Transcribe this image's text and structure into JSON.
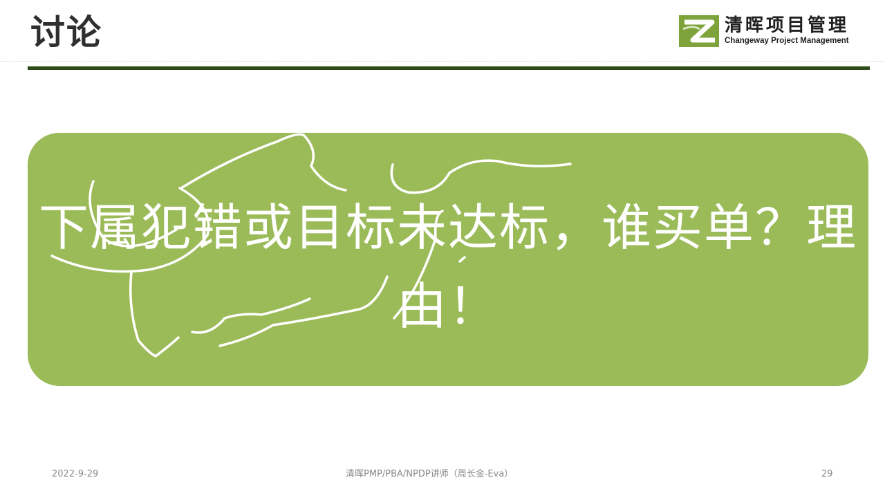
{
  "slide": {
    "title": "讨论",
    "logo": {
      "name_cn": "清晖项目管理",
      "name_en": "Changeway Project Management",
      "brand_color": "#7ea33a"
    },
    "question": "下属犯错或目标未达标，谁买单？理由！",
    "box_color": "#9bbb59",
    "rule_color": "#2d4a19",
    "footer": {
      "date": "2022-9-29",
      "center": "清晖PMP/PBA/NPDP讲师（周长金-Eva）",
      "page": "29"
    }
  }
}
